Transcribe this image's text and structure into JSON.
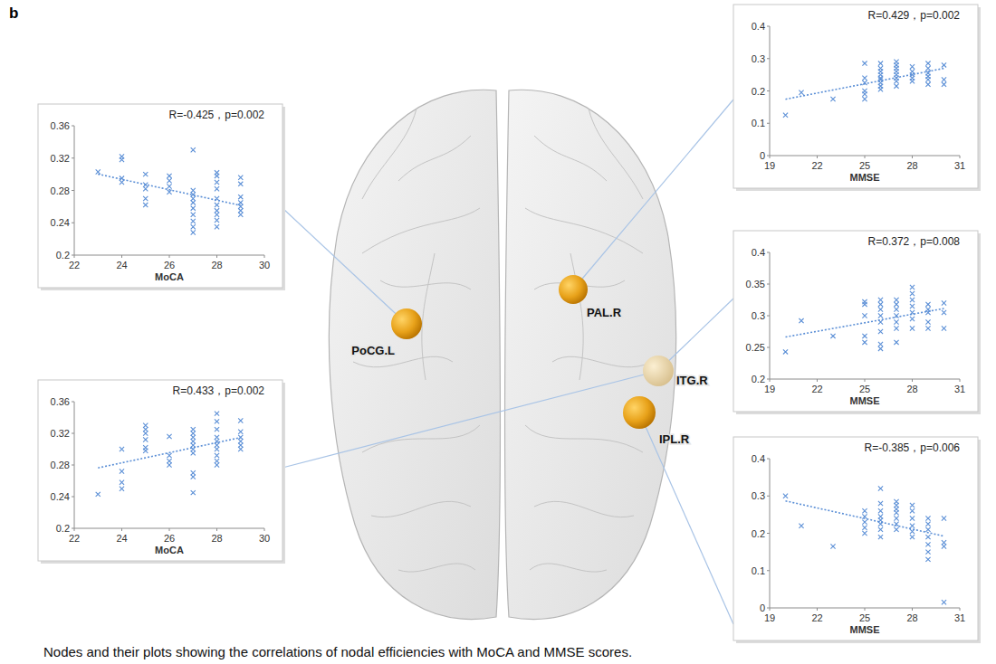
{
  "figure": {
    "panel_label": "b",
    "caption": "Nodes and their plots showing the correlations of nodal efficiencies with MoCA and MMSE scores.",
    "nodes": [
      "PoCG.L",
      "PAL.R",
      "ITG.R",
      "IPL.R"
    ]
  },
  "chart_data": [
    {
      "type": "scatter",
      "title": "R=-0.425，p=0.002",
      "x_label": "MoCA",
      "color": "#5b8fd6",
      "marker": "x",
      "xlim": [
        22,
        30
      ],
      "xticks": [
        22,
        24,
        26,
        28,
        30
      ],
      "ylim": [
        0.2,
        0.36
      ],
      "yticks": [
        0.2,
        0.24,
        0.28,
        0.32,
        0.36
      ],
      "x": [
        23,
        24,
        24,
        24,
        24,
        25,
        25,
        25,
        25,
        25,
        26,
        26,
        26,
        26,
        27,
        27,
        27,
        27,
        27,
        27,
        27,
        27,
        27,
        27,
        28,
        28,
        28,
        28,
        28,
        28,
        28,
        28,
        28,
        28,
        29,
        29,
        29,
        29,
        29,
        29,
        29
      ],
      "values": [
        0.303,
        0.322,
        0.318,
        0.295,
        0.29,
        0.3,
        0.287,
        0.282,
        0.27,
        0.262,
        0.298,
        0.292,
        0.285,
        0.278,
        0.33,
        0.28,
        0.275,
        0.27,
        0.265,
        0.258,
        0.25,
        0.242,
        0.235,
        0.228,
        0.302,
        0.298,
        0.29,
        0.282,
        0.27,
        0.262,
        0.255,
        0.25,
        0.243,
        0.235,
        0.296,
        0.288,
        0.272,
        0.265,
        0.26,
        0.255,
        0.25
      ]
    },
    {
      "type": "scatter",
      "title": "R=0.433，p=0.002",
      "x_label": "MoCA",
      "color": "#5b8fd6",
      "marker": "x",
      "xlim": [
        22,
        30
      ],
      "xticks": [
        22,
        24,
        26,
        28,
        30
      ],
      "ylim": [
        0.2,
        0.36
      ],
      "yticks": [
        0.2,
        0.24,
        0.28,
        0.32,
        0.36
      ],
      "x": [
        23,
        24,
        24,
        24,
        24,
        25,
        25,
        25,
        25,
        25,
        25,
        26,
        26,
        26,
        26,
        27,
        27,
        27,
        27,
        27,
        27,
        27,
        27,
        27,
        27,
        28,
        28,
        28,
        28,
        28,
        28,
        28,
        28,
        28,
        28,
        29,
        29,
        29,
        29,
        29,
        29
      ],
      "values": [
        0.243,
        0.3,
        0.272,
        0.258,
        0.25,
        0.33,
        0.325,
        0.32,
        0.312,
        0.302,
        0.298,
        0.316,
        0.292,
        0.285,
        0.28,
        0.325,
        0.32,
        0.315,
        0.31,
        0.305,
        0.3,
        0.295,
        0.27,
        0.265,
        0.245,
        0.345,
        0.335,
        0.325,
        0.315,
        0.31,
        0.305,
        0.3,
        0.292,
        0.285,
        0.28,
        0.336,
        0.322,
        0.315,
        0.31,
        0.305,
        0.3
      ]
    },
    {
      "type": "scatter",
      "title": "R=0.429，p=0.002",
      "x_label": "MMSE",
      "color": "#5b8fd6",
      "marker": "x",
      "xlim": [
        19,
        31
      ],
      "xticks": [
        19,
        22,
        25,
        28,
        31
      ],
      "ylim": [
        0,
        0.4
      ],
      "yticks": [
        0,
        0.1,
        0.2,
        0.3,
        0.4
      ],
      "x": [
        20,
        21,
        23,
        25,
        25,
        25,
        25,
        25,
        25,
        26,
        26,
        26,
        26,
        26,
        26,
        26,
        26,
        26,
        27,
        27,
        27,
        27,
        27,
        27,
        27,
        27,
        28,
        28,
        28,
        28,
        28,
        29,
        29,
        29,
        29,
        29,
        29,
        30,
        30,
        30
      ],
      "values": [
        0.125,
        0.195,
        0.175,
        0.285,
        0.24,
        0.225,
        0.2,
        0.19,
        0.175,
        0.285,
        0.27,
        0.26,
        0.25,
        0.24,
        0.235,
        0.225,
        0.215,
        0.205,
        0.29,
        0.28,
        0.27,
        0.26,
        0.25,
        0.24,
        0.23,
        0.215,
        0.275,
        0.26,
        0.25,
        0.24,
        0.23,
        0.285,
        0.27,
        0.255,
        0.245,
        0.235,
        0.22,
        0.28,
        0.235,
        0.22
      ]
    },
    {
      "type": "scatter",
      "title": "R=0.372，p=0.008",
      "x_label": "MMSE",
      "color": "#5b8fd6",
      "marker": "x",
      "xlim": [
        19,
        31
      ],
      "xticks": [
        19,
        22,
        25,
        28,
        31
      ],
      "ylim": [
        0.2,
        0.4
      ],
      "yticks": [
        0.2,
        0.25,
        0.3,
        0.35,
        0.4
      ],
      "x": [
        20,
        21,
        23,
        25,
        25,
        25,
        25,
        25,
        26,
        26,
        26,
        26,
        26,
        26,
        26,
        26,
        27,
        27,
        27,
        27,
        27,
        27,
        27,
        28,
        28,
        28,
        28,
        28,
        28,
        28,
        29,
        29,
        29,
        29,
        29,
        30,
        30,
        30
      ],
      "values": [
        0.243,
        0.292,
        0.268,
        0.322,
        0.318,
        0.3,
        0.268,
        0.258,
        0.325,
        0.318,
        0.31,
        0.3,
        0.29,
        0.275,
        0.255,
        0.248,
        0.325,
        0.318,
        0.31,
        0.3,
        0.29,
        0.28,
        0.258,
        0.345,
        0.335,
        0.325,
        0.315,
        0.305,
        0.295,
        0.28,
        0.318,
        0.31,
        0.305,
        0.29,
        0.28,
        0.32,
        0.305,
        0.28
      ]
    },
    {
      "type": "scatter",
      "title": "R=-0.385，p=0.006",
      "x_label": "MMSE",
      "color": "#5b8fd6",
      "marker": "x",
      "xlim": [
        19,
        31
      ],
      "xticks": [
        19,
        22,
        25,
        28,
        31
      ],
      "ylim": [
        0,
        0.4
      ],
      "yticks": [
        0,
        0.1,
        0.2,
        0.3,
        0.4
      ],
      "x": [
        20,
        21,
        23,
        25,
        25,
        25,
        25,
        25,
        26,
        26,
        26,
        26,
        26,
        26,
        26,
        26,
        27,
        27,
        27,
        27,
        27,
        27,
        27,
        28,
        28,
        28,
        28,
        28,
        28,
        29,
        29,
        29,
        29,
        29,
        29,
        29,
        30,
        30,
        30,
        30
      ],
      "values": [
        0.3,
        0.22,
        0.165,
        0.26,
        0.245,
        0.23,
        0.215,
        0.2,
        0.32,
        0.28,
        0.26,
        0.245,
        0.235,
        0.225,
        0.21,
        0.19,
        0.285,
        0.275,
        0.265,
        0.255,
        0.24,
        0.225,
        0.21,
        0.275,
        0.26,
        0.24,
        0.22,
        0.205,
        0.19,
        0.24,
        0.225,
        0.21,
        0.19,
        0.17,
        0.15,
        0.13,
        0.24,
        0.175,
        0.165,
        0.015
      ]
    }
  ]
}
